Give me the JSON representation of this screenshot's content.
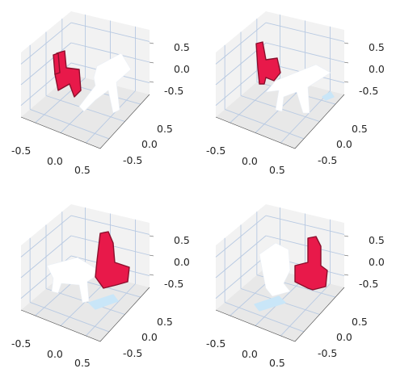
{
  "chart_data": [
    {
      "type": "scatter3d",
      "title": "",
      "x_ticks": [
        "-0.5",
        "0.0",
        "0.5"
      ],
      "y_ticks": [
        "0.5",
        "0.0",
        "-0.5"
      ],
      "z_ticks": [
        "0.5",
        "0.0",
        "-0.5"
      ],
      "xlim": [
        -0.8,
        0.8
      ],
      "ylim": [
        -0.8,
        0.8
      ],
      "zlim": [
        -0.8,
        0.8
      ],
      "grid": true,
      "objects": [
        {
          "label": "chair",
          "color": "#e8194a",
          "shade": "#8a0f2c"
        },
        {
          "label": "table",
          "color": "#ffffff",
          "shade": "#e9eef5"
        }
      ]
    },
    {
      "type": "scatter3d",
      "title": "",
      "x_ticks": [
        "-0.5",
        "0.0",
        "0.5"
      ],
      "y_ticks": [
        "0.5",
        "0.0",
        "-0.5"
      ],
      "z_ticks": [
        "0.5",
        "0.0",
        "-0.5"
      ],
      "xlim": [
        -0.8,
        0.8
      ],
      "ylim": [
        -0.8,
        0.8
      ],
      "zlim": [
        -0.8,
        0.8
      ],
      "grid": true,
      "objects": [
        {
          "label": "chair",
          "color": "#e8194a",
          "shade": "#8a0f2c"
        },
        {
          "label": "table",
          "color": "#ffffff",
          "shade": "#e9eef5"
        },
        {
          "label": "base",
          "color": "#c9e6f8"
        }
      ]
    },
    {
      "type": "scatter3d",
      "title": "",
      "x_ticks": [
        "-0.5",
        "0.0",
        "0.5"
      ],
      "y_ticks": [
        "0.5",
        "0.0",
        "-0.5"
      ],
      "z_ticks": [
        "0.5",
        "0.0",
        "-0.5"
      ],
      "xlim": [
        -0.8,
        0.8
      ],
      "ylim": [
        -0.8,
        0.8
      ],
      "zlim": [
        -0.8,
        0.8
      ],
      "grid": true,
      "objects": [
        {
          "label": "chair",
          "color": "#e8194a",
          "shade": "#8a0f2c"
        },
        {
          "label": "table",
          "color": "#ffffff",
          "shade": "#e9eef5"
        },
        {
          "label": "base",
          "color": "#c9e6f8"
        }
      ]
    },
    {
      "type": "scatter3d",
      "title": "",
      "x_ticks": [
        "-0.5",
        "0.0",
        "0.5"
      ],
      "y_ticks": [
        "0.5",
        "0.0",
        "-0.5"
      ],
      "z_ticks": [
        "0.5",
        "0.0",
        "-0.5"
      ],
      "xlim": [
        -0.8,
        0.8
      ],
      "ylim": [
        -0.8,
        0.8
      ],
      "zlim": [
        -0.8,
        0.8
      ],
      "grid": true,
      "objects": [
        {
          "label": "chair",
          "color": "#e8194a",
          "shade": "#8a0f2c"
        },
        {
          "label": "table",
          "color": "#ffffff",
          "shade": "#e9eef5"
        },
        {
          "label": "base",
          "color": "#c9e6f8"
        }
      ]
    }
  ]
}
